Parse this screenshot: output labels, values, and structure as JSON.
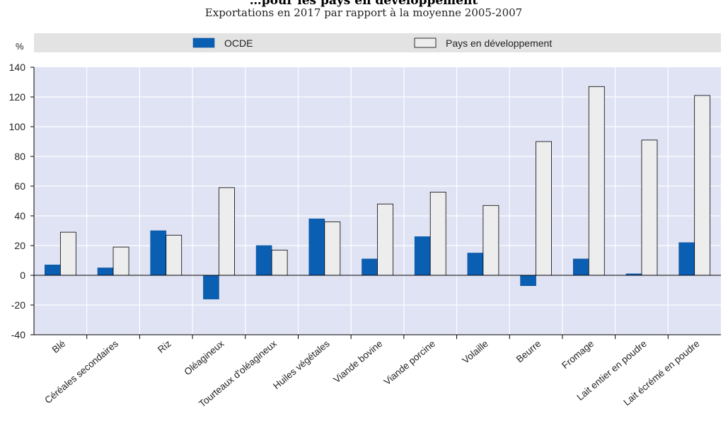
{
  "chart_data": {
    "type": "bar",
    "title": "…pour les pays en développement",
    "subtitle": "Exportations en 2017 par rapport à la moyenne 2005-2007",
    "ylabel": "%",
    "ylim": [
      -40,
      140
    ],
    "yticks": [
      -40,
      -20,
      0,
      20,
      40,
      60,
      80,
      100,
      120,
      140
    ],
    "grid": true,
    "legend_position": "top",
    "categories": [
      "Blé",
      "Céréales secondaires",
      "Riz",
      "Oléagineux",
      "Tourteaux d'oléagineux",
      "Huiles végétales",
      "Viande bovine",
      "Viande porcine",
      "Volaille",
      "Beurre",
      "Fromage",
      "Lait entier en poudre",
      "Lait écrémé en poudre"
    ],
    "series": [
      {
        "name": "OCDE",
        "color": "#0b5fb3",
        "values": [
          7,
          5,
          30,
          -16,
          20,
          38,
          11,
          26,
          15,
          -7,
          11,
          1,
          22
        ]
      },
      {
        "name": "Pays en développement",
        "color": "#ededed",
        "values": [
          29,
          19,
          27,
          59,
          17,
          36,
          48,
          56,
          47,
          90,
          127,
          91,
          121
        ]
      }
    ],
    "colors": {
      "plot_background": "#dfe3f4",
      "legend_background": "#e3e3e3",
      "gridline": "#ffffff"
    }
  }
}
